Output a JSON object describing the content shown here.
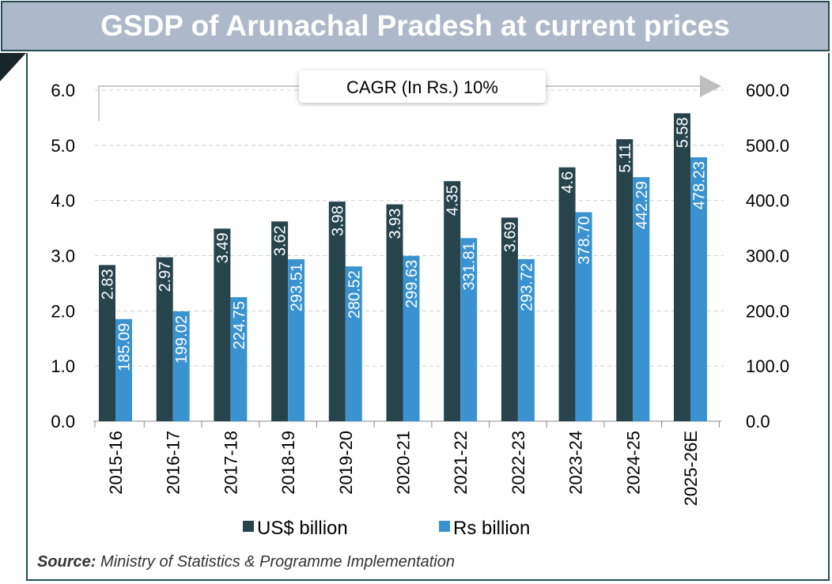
{
  "title": "GSDP of Arunachal Pradesh at current prices",
  "annotation": "CAGR (In Rs.) 10%",
  "source_label": "Source:",
  "source_text": "Ministry of Statistics & Programme Implementation",
  "chart_data": {
    "type": "bar",
    "categories": [
      "2015-16",
      "2016-17",
      "2017-18",
      "2018-19",
      "2019-20",
      "2020-21",
      "2021-22",
      "2022-23",
      "2023-24",
      "2024-25",
      "2025-26E"
    ],
    "series": [
      {
        "name": "US$ billion",
        "axis": "left",
        "color": "#27444d",
        "values": [
          2.83,
          2.97,
          3.49,
          3.62,
          3.98,
          3.93,
          4.35,
          3.69,
          4.6,
          5.11,
          5.58
        ],
        "labels": [
          "2.83",
          "2.97",
          "3.49",
          "3.62",
          "3.98",
          "3.93",
          "4.35",
          "3.69",
          "4.6",
          "5.11",
          "5.58"
        ]
      },
      {
        "name": "Rs billion",
        "axis": "right",
        "color": "#3a93d0",
        "values": [
          185.09,
          199.02,
          224.75,
          293.51,
          280.52,
          299.63,
          331.81,
          293.72,
          378.7,
          442.29,
          478.23
        ],
        "labels": [
          "185.09",
          "199.02",
          "224.75",
          "293.51",
          "280.52",
          "299.63",
          "331.81",
          "293.72",
          "378.70",
          "442.29",
          "478.23"
        ]
      }
    ],
    "left_ylim": [
      0,
      6
    ],
    "right_ylim": [
      0,
      600
    ],
    "left_ticks": [
      "0.0",
      "1.0",
      "2.0",
      "3.0",
      "4.0",
      "5.0",
      "6.0"
    ],
    "right_ticks": [
      "0.0",
      "100.0",
      "200.0",
      "300.0",
      "400.0",
      "500.0",
      "600.0"
    ],
    "grid": true,
    "legend_position": "bottom"
  }
}
